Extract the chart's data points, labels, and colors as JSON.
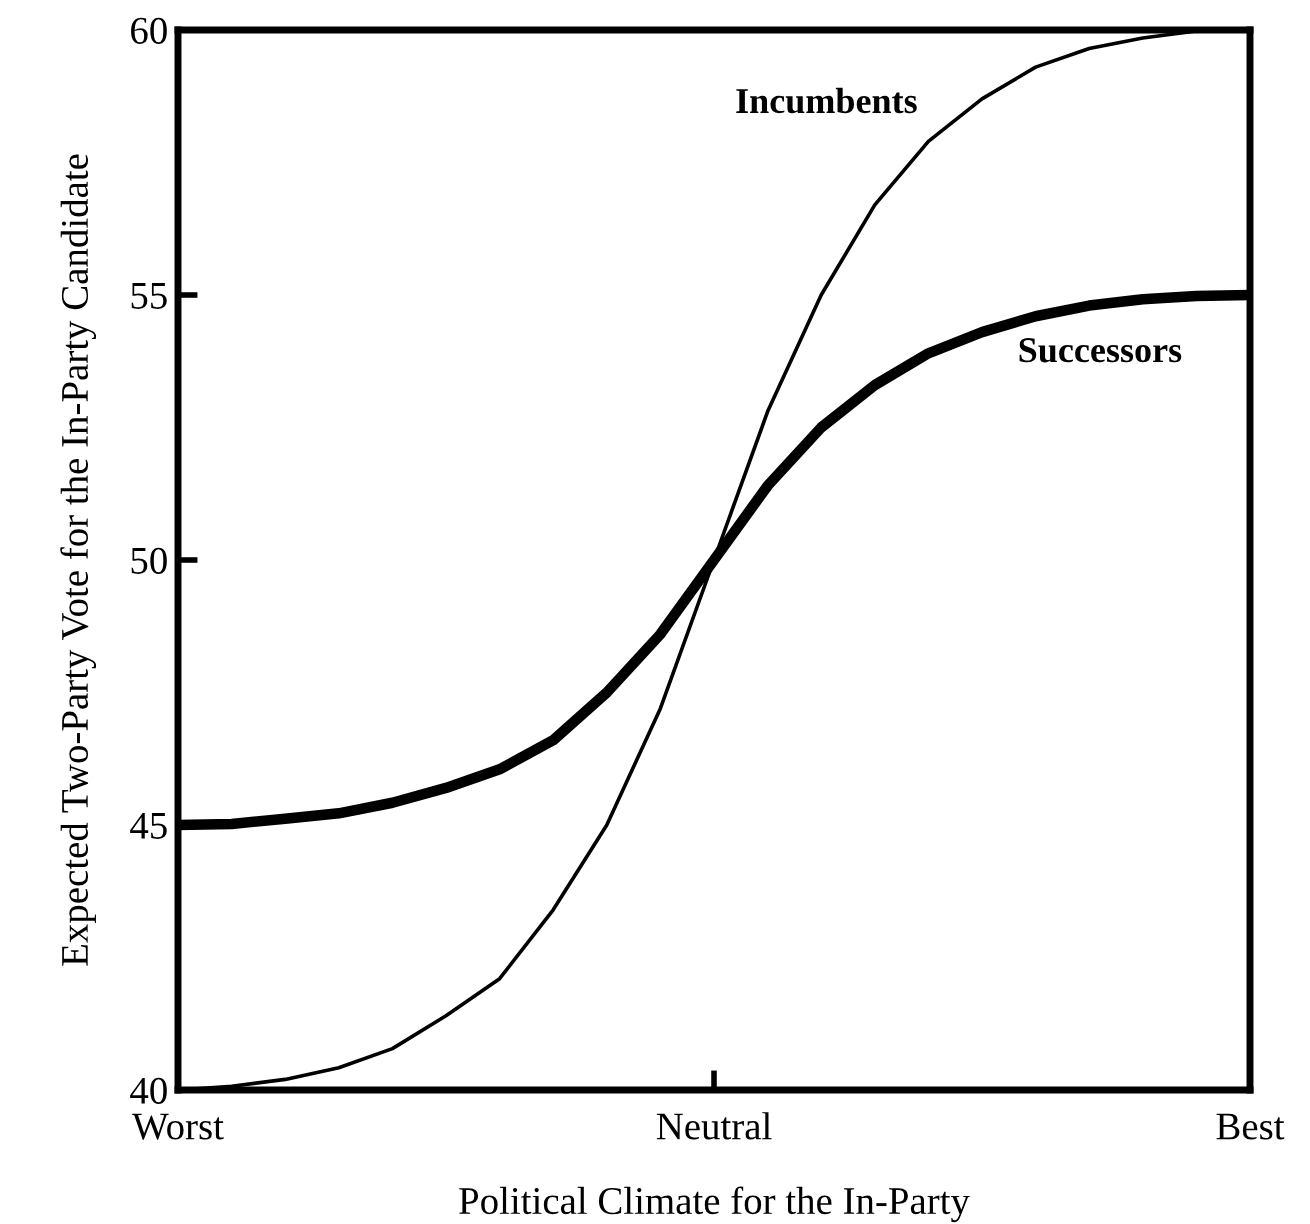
{
  "chart_data": {
    "type": "line",
    "xlabel": "Political Climate for the In-Party",
    "ylabel": "Expected Two-Party Vote for the In-Party Candidate",
    "categories": [
      "Worst",
      null,
      null,
      null,
      null,
      null,
      null,
      null,
      null,
      null,
      "Neutral",
      null,
      null,
      null,
      null,
      null,
      null,
      null,
      null,
      null,
      "Best"
    ],
    "ylim": [
      40,
      60
    ],
    "yticks": [
      40,
      45,
      50,
      55,
      60
    ],
    "grid": false,
    "legend": false,
    "series": [
      {
        "name": "Incumbents",
        "color": "#000000",
        "values": [
          40,
          40.07,
          40.2,
          40.42,
          40.78,
          41.4,
          42.1,
          43.4,
          45.0,
          47.2,
          50,
          52.8,
          55.0,
          56.7,
          57.9,
          58.7,
          59.3,
          59.65,
          59.85,
          59.98,
          60
        ]
      },
      {
        "name": "Successors",
        "color": "#000000",
        "values": [
          45,
          45.02,
          45.12,
          45.22,
          45.42,
          45.7,
          46.05,
          46.6,
          47.5,
          48.6,
          50,
          51.4,
          52.5,
          53.3,
          53.9,
          54.3,
          54.6,
          54.8,
          54.92,
          54.98,
          55
        ]
      }
    ]
  }
}
